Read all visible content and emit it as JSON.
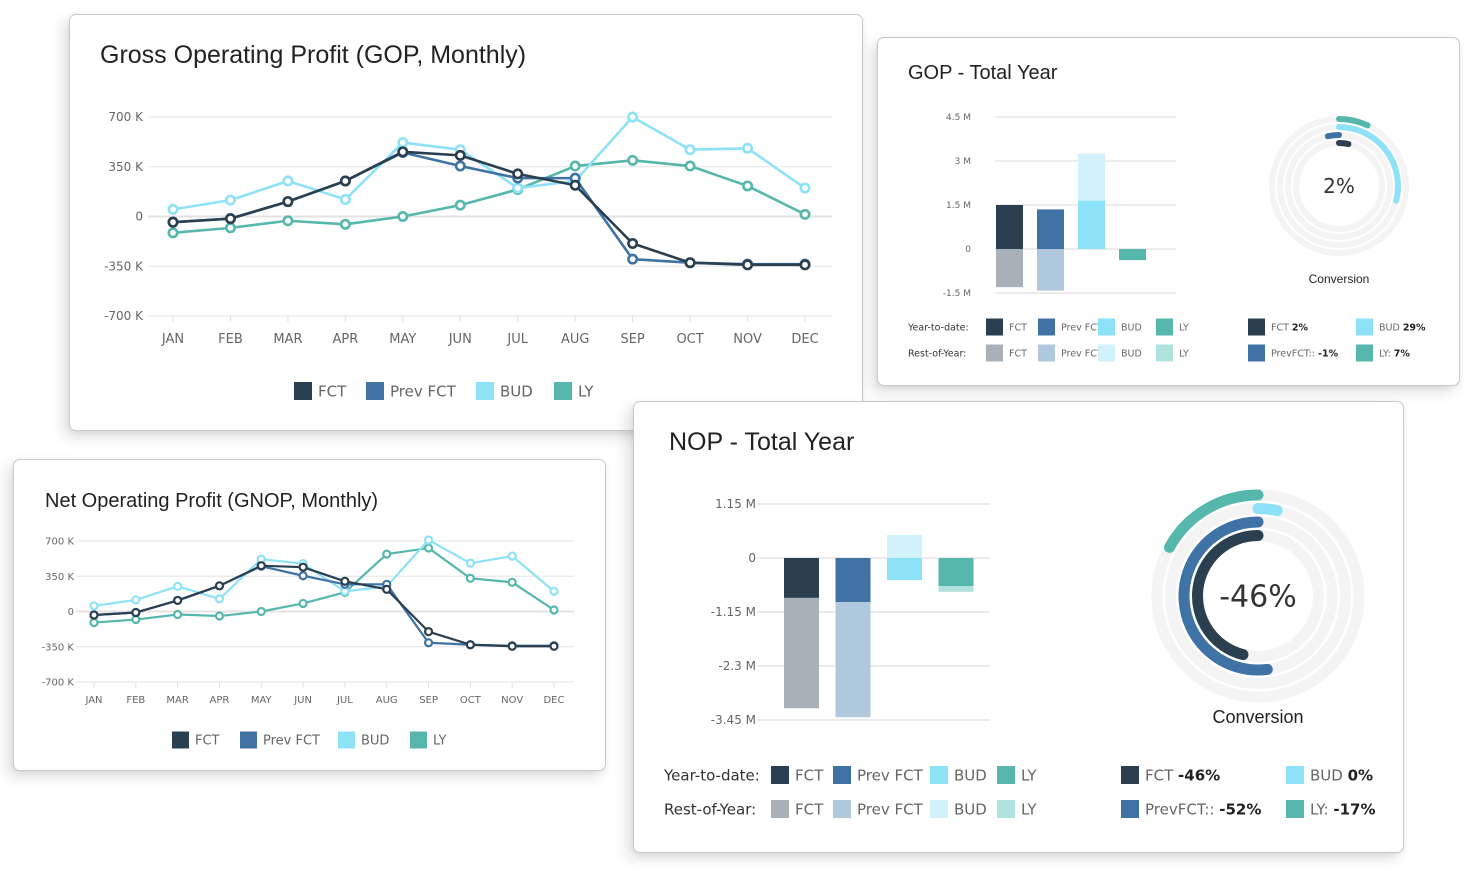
{
  "series_colors": {
    "FCT": "#2a3f4f",
    "Prev FCT": "#3f72a5",
    "BUD": "#8ee2f7",
    "LY": "#56b7ad"
  },
  "rest_colors": {
    "FCT": "#a8b0b8",
    "Prev FCT": "#b0c8de",
    "BUD": "#d2f2fb",
    "LY": "#b0e3dd"
  },
  "cards": {
    "gop_monthly": {
      "title": "Gross Operating Profit (GOP, Monthly)"
    },
    "nop_monthly": {
      "title": "Net Operating Profit (GNOP, Monthly)"
    },
    "gop_total": {
      "title": "GOP - Total Year",
      "center_value": "2%",
      "donut_label": "Conversion",
      "ytd_label": "Year-to-date:",
      "roy_label": "Rest-of-Year:",
      "legend": [
        "FCT",
        "Prev FCT",
        "BUD",
        "LY"
      ],
      "kpis": [
        {
          "label": "FCT",
          "value": "2%",
          "series": "FCT"
        },
        {
          "label": "BUD",
          "value": "29%",
          "series": "BUD"
        },
        {
          "label": "PrevFCT::",
          "value": "-1%",
          "series": "Prev FCT"
        },
        {
          "label": "LY:",
          "value": "7%",
          "series": "LY"
        }
      ]
    },
    "nop_total": {
      "title": "NOP - Total Year",
      "center_value": "-46%",
      "donut_label": "Conversion",
      "ytd_label": "Year-to-date:",
      "roy_label": "Rest-of-Year:",
      "legend": [
        "FCT",
        "Prev FCT",
        "BUD",
        "LY"
      ],
      "kpis": [
        {
          "label": "FCT",
          "value": "-46%",
          "series": "FCT"
        },
        {
          "label": "BUD",
          "value": "0%",
          "series": "BUD"
        },
        {
          "label": "PrevFCT::",
          "value": "-52%",
          "series": "Prev FCT"
        },
        {
          "label": "LY:",
          "value": "-17%",
          "series": "LY"
        }
      ]
    }
  },
  "chart_data": [
    {
      "id": "gop_monthly",
      "type": "line",
      "title": "Gross Operating Profit (GOP, Monthly)",
      "categories": [
        "JAN",
        "FEB",
        "MAR",
        "APR",
        "MAY",
        "JUN",
        "JUL",
        "AUG",
        "SEP",
        "OCT",
        "NOV",
        "DEC"
      ],
      "yticks": [
        700000,
        350000,
        0,
        -350000,
        -700000
      ],
      "ytick_labels": [
        "700 K",
        "350 K",
        "0",
        "-350 K",
        "-700 K"
      ],
      "ylim": [
        -700000,
        700000
      ],
      "grid": true,
      "legend_position": "bottom",
      "series": [
        {
          "name": "LY",
          "values": [
            -115000,
            -80000,
            -30000,
            -55000,
            0,
            80000,
            190000,
            355000,
            395000,
            355000,
            215000,
            15000
          ]
        },
        {
          "name": "BUD",
          "values": [
            50000,
            115000,
            250000,
            120000,
            520000,
            470000,
            200000,
            250000,
            700000,
            470000,
            480000,
            200000
          ]
        },
        {
          "name": "Prev FCT",
          "values": [
            -40000,
            -15000,
            105000,
            250000,
            450000,
            355000,
            270000,
            270000,
            -300000,
            -325000,
            -335000,
            -335000
          ]
        },
        {
          "name": "FCT",
          "values": [
            -40000,
            -15000,
            105000,
            250000,
            455000,
            430000,
            300000,
            220000,
            -190000,
            -325000,
            -340000,
            -340000
          ]
        }
      ]
    },
    {
      "id": "nop_monthly",
      "type": "line",
      "title": "Net Operating Profit (GNOP, Monthly)",
      "categories": [
        "JAN",
        "FEB",
        "MAR",
        "APR",
        "MAY",
        "JUN",
        "JUL",
        "AUG",
        "SEP",
        "OCT",
        "NOV",
        "DEC"
      ],
      "yticks": [
        700000,
        350000,
        0,
        -350000,
        -700000
      ],
      "ytick_labels": [
        "700 K",
        "350 K",
        "0",
        "-350 K",
        "-700 K"
      ],
      "ylim": [
        -700000,
        700000
      ],
      "grid": true,
      "legend_position": "bottom",
      "series": [
        {
          "name": "LY",
          "values": [
            -110000,
            -80000,
            -30000,
            -45000,
            0,
            80000,
            190000,
            570000,
            630000,
            330000,
            290000,
            15000
          ]
        },
        {
          "name": "BUD",
          "values": [
            55000,
            115000,
            250000,
            125000,
            520000,
            475000,
            200000,
            250000,
            710000,
            480000,
            550000,
            200000
          ]
        },
        {
          "name": "Prev FCT",
          "values": [
            -35000,
            -10000,
            110000,
            255000,
            450000,
            355000,
            270000,
            270000,
            -310000,
            -330000,
            -340000,
            -340000
          ]
        },
        {
          "name": "FCT",
          "values": [
            -35000,
            -10000,
            110000,
            255000,
            455000,
            440000,
            300000,
            220000,
            -200000,
            -330000,
            -345000,
            -345000
          ]
        }
      ]
    },
    {
      "id": "gop_total",
      "type": "bar",
      "title": "GOP - Total Year",
      "categories": [
        "FCT",
        "Prev FCT",
        "BUD",
        "LY"
      ],
      "yticks": [
        4500000,
        3000000,
        1500000,
        0,
        -1500000
      ],
      "ytick_labels": [
        "4.5 M",
        "3 M",
        "1.5 M",
        "0",
        "-1.5 M"
      ],
      "ylim": [
        -1500000,
        4500000
      ],
      "series": [
        {
          "name": "Year-to-date",
          "values": [
            1500000,
            1350000,
            1650000,
            -380000
          ]
        },
        {
          "name": "Rest-of-Year",
          "values": [
            -1300000,
            -1420000,
            1600000,
            0
          ]
        }
      ],
      "donut": {
        "title": "Conversion",
        "center": "2%",
        "rings": [
          {
            "name": "LY",
            "percent": 7
          },
          {
            "name": "BUD",
            "percent": 29
          },
          {
            "name": "Prev FCT",
            "percent": -1
          },
          {
            "name": "FCT",
            "percent": 2
          }
        ]
      }
    },
    {
      "id": "nop_total",
      "type": "bar",
      "title": "NOP - Total Year",
      "categories": [
        "FCT",
        "Prev FCT",
        "BUD",
        "LY"
      ],
      "yticks": [
        1150000,
        0,
        -1150000,
        -2300000,
        -3450000
      ],
      "ytick_labels": [
        "1.15 M",
        "0",
        "-1.15 M",
        "-2.3 M",
        "-3.45 M"
      ],
      "ylim": [
        -3450000,
        1150000
      ],
      "series": [
        {
          "name": "Year-to-date",
          "values": [
            -850000,
            -940000,
            -470000,
            -600000
          ]
        },
        {
          "name": "Rest-of-Year",
          "values": [
            -2350000,
            -2450000,
            490000,
            -120000
          ]
        }
      ],
      "donut": {
        "title": "Conversion",
        "center": "-46%",
        "rings": [
          {
            "name": "LY",
            "percent": -17
          },
          {
            "name": "BUD",
            "percent": 0
          },
          {
            "name": "Prev FCT",
            "percent": -52
          },
          {
            "name": "FCT",
            "percent": -46
          }
        ]
      }
    }
  ]
}
